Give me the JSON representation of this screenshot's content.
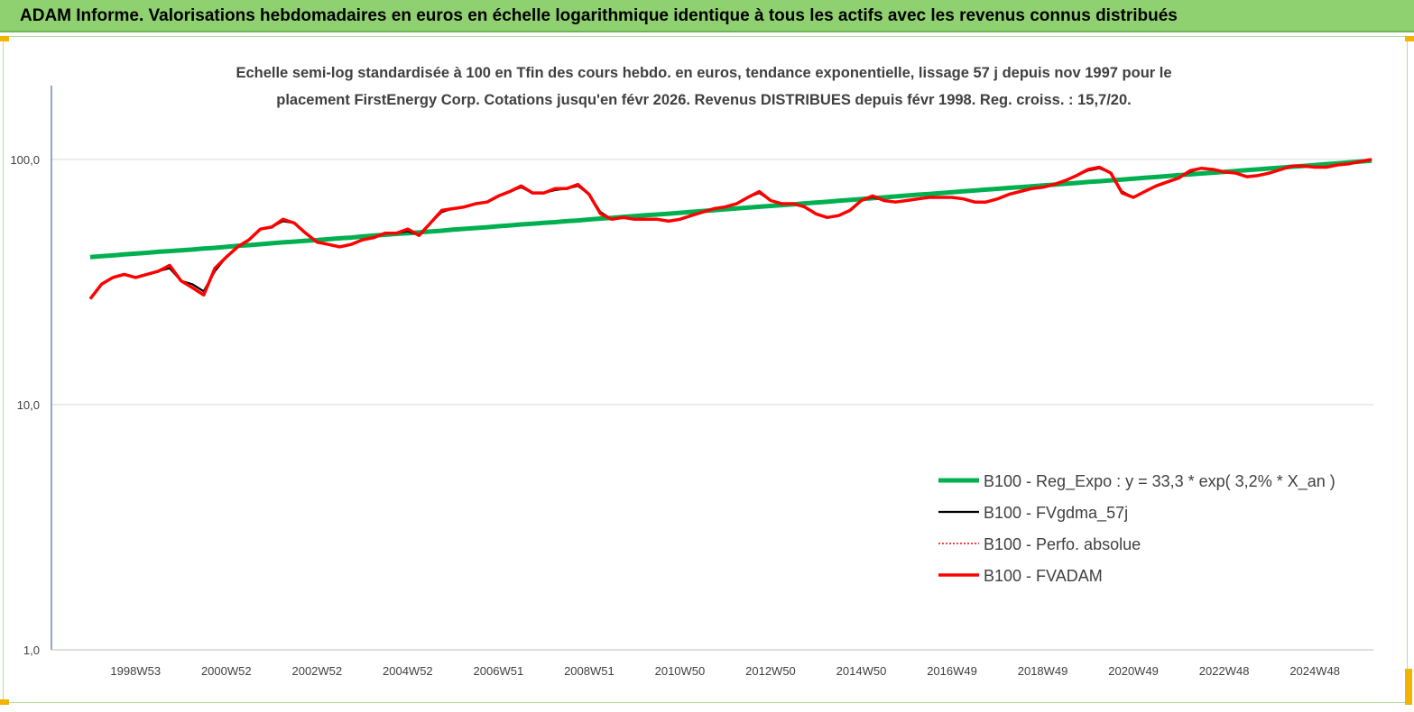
{
  "header": {
    "title": "ADAM Informe. Valorisations hebdomadaires en euros en échelle logarithmique identique à tous les actifs avec les revenus connus distribués"
  },
  "chart_data": {
    "type": "line",
    "title": "Echelle semi-log standardisée à 100 en Tfin des cours hebdo. en euros, tendance exponentielle, lissage 57 j depuis nov 1997 pour le placement FirstEnergy Corp. Cotations jusqu'en févr 2026. Revenus DISTRIBUES depuis févr 1998. Reg. croiss. : 15,7/20.",
    "log_scale": true,
    "grid": true,
    "legend": "lower right",
    "ylim": [
      1,
      200
    ],
    "yticks": [
      {
        "value": 1,
        "label": "1,0"
      },
      {
        "value": 10,
        "label": "10,0"
      },
      {
        "value": 100,
        "label": "100,0"
      }
    ],
    "categories": [
      null,
      null,
      null,
      null,
      "1998W53",
      null,
      null,
      null,
      null,
      null,
      null,
      null,
      "2000W52",
      null,
      null,
      null,
      null,
      null,
      null,
      null,
      "2002W52",
      null,
      null,
      null,
      null,
      null,
      null,
      null,
      "2004W52",
      null,
      null,
      null,
      null,
      null,
      null,
      null,
      "2006W51",
      null,
      null,
      null,
      null,
      null,
      null,
      null,
      "2008W51",
      null,
      null,
      null,
      null,
      null,
      null,
      null,
      "2010W50",
      null,
      null,
      null,
      null,
      null,
      null,
      null,
      "2012W50",
      null,
      null,
      null,
      null,
      null,
      null,
      null,
      "2014W50",
      null,
      null,
      null,
      null,
      null,
      null,
      null,
      "2016W49",
      null,
      null,
      null,
      null,
      null,
      null,
      null,
      "2018W49",
      null,
      null,
      null,
      null,
      null,
      null,
      null,
      "2020W49",
      null,
      null,
      null,
      null,
      null,
      null,
      null,
      "2022W48",
      null,
      null,
      null,
      null,
      null,
      null,
      null,
      "2024W48",
      null,
      null,
      null,
      null,
      null
    ],
    "series": [
      {
        "name": "B100 - Reg_Expo : y = 33,3 *  exp( 3,2% *  X_an )",
        "color": "#00b050",
        "linestyle": "solid",
        "values": [
          40.0,
          40.3,
          40.6,
          41.0,
          41.3,
          41.6,
          42.0,
          42.3,
          42.6,
          42.9,
          43.3,
          43.6,
          44.0,
          44.4,
          44.7,
          45.1,
          45.5,
          45.9,
          46.2,
          46.6,
          46.9,
          47.3,
          47.7,
          48.0,
          48.5,
          48.9,
          49.3,
          49.7,
          50.0,
          50.4,
          50.8,
          51.2,
          51.7,
          52.1,
          52.5,
          52.9,
          53.4,
          53.8,
          54.3,
          54.7,
          55.1,
          55.5,
          56.0,
          56.4,
          56.9,
          57.4,
          57.8,
          58.3,
          58.7,
          59.2,
          59.6,
          60.1,
          60.6,
          61.1,
          61.6,
          62.1,
          62.6,
          63.1,
          63.6,
          64.1,
          64.6,
          65.1,
          65.6,
          66.2,
          66.7,
          67.2,
          67.8,
          68.3,
          68.9,
          69.5,
          70.0,
          70.6,
          71.2,
          71.8,
          72.3,
          72.9,
          73.5,
          74.1,
          74.7,
          75.3,
          75.9,
          76.5,
          77.1,
          77.7,
          78.3,
          78.9,
          79.6,
          80.2,
          80.9,
          81.5,
          82.2,
          82.8,
          83.5,
          84.2,
          84.8,
          85.5,
          86.2,
          86.9,
          87.6,
          88.3,
          89.0,
          89.7,
          90.4,
          91.1,
          91.9,
          92.6,
          93.4,
          94.1,
          94.9,
          95.7,
          96.4,
          97.2,
          98.0,
          98.8
        ]
      },
      {
        "name": "B100 - FVgdma_57j",
        "color": "#000000",
        "linestyle": "solid",
        "values": [
          27,
          31,
          33,
          34,
          33,
          34,
          35,
          36,
          32,
          31,
          29,
          35,
          40,
          44,
          47,
          52,
          53,
          56,
          55,
          50,
          46,
          45,
          44,
          45,
          47,
          48,
          50,
          50,
          51,
          49,
          55,
          61,
          63,
          64,
          66,
          67,
          71,
          74,
          77,
          73,
          73,
          75,
          76,
          78,
          72,
          61,
          57,
          58,
          57,
          57,
          57,
          56,
          57,
          59,
          61,
          63,
          64,
          66,
          70,
          73,
          68,
          66,
          66,
          64,
          60,
          58,
          59,
          62,
          68,
          70,
          68,
          67,
          68,
          69,
          70,
          70,
          70,
          69,
          67,
          67,
          69,
          72,
          74,
          76,
          77,
          79,
          82,
          86,
          90,
          92,
          88,
          74,
          70,
          74,
          78,
          81,
          84,
          89,
          92,
          91,
          89,
          88,
          85,
          86,
          88,
          91,
          94,
          94,
          93,
          93,
          95,
          96,
          98,
          100
        ]
      },
      {
        "name": "B100 - Perfo. absolue",
        "color": "#ff0000",
        "linestyle": "dotted",
        "values": [
          27,
          31,
          33,
          34,
          33,
          34,
          35,
          37,
          32,
          30,
          28,
          36,
          40,
          44,
          47,
          52,
          53,
          57,
          55,
          50,
          46,
          45,
          44,
          45,
          47,
          48,
          50,
          50,
          52,
          49,
          55,
          62,
          63,
          64,
          66,
          67,
          71,
          74,
          78,
          73,
          73,
          76,
          76,
          79,
          72,
          60,
          57,
          58,
          57,
          57,
          57,
          56,
          57,
          59,
          61,
          63,
          64,
          66,
          70,
          74,
          68,
          66,
          66,
          64,
          60,
          58,
          59,
          62,
          68,
          71,
          68,
          67,
          68,
          69,
          70,
          70,
          70,
          69,
          67,
          67,
          69,
          72,
          74,
          76,
          77,
          79,
          82,
          86,
          91,
          93,
          88,
          73,
          70,
          74,
          78,
          81,
          84,
          90,
          92,
          91,
          89,
          88,
          85,
          86,
          88,
          91,
          94,
          94,
          93,
          93,
          95,
          96,
          98,
          100
        ]
      },
      {
        "name": "B100 - FVADAM",
        "color": "#ff0000",
        "linestyle": "solid",
        "values": [
          27,
          31,
          33,
          34,
          33,
          34,
          35,
          37,
          32,
          30,
          28,
          36,
          40,
          44,
          47,
          52,
          53,
          57,
          55,
          50,
          46,
          45,
          44,
          45,
          47,
          48,
          50,
          50,
          52,
          49,
          55,
          62,
          63,
          64,
          66,
          67,
          71,
          74,
          78,
          73,
          73,
          76,
          76,
          79,
          72,
          60,
          57,
          58,
          57,
          57,
          57,
          56,
          57,
          59,
          61,
          63,
          64,
          66,
          70,
          74,
          68,
          66,
          66,
          64,
          60,
          58,
          59,
          62,
          68,
          71,
          68,
          67,
          68,
          69,
          70,
          70,
          70,
          69,
          67,
          67,
          69,
          72,
          74,
          76,
          77,
          79,
          82,
          86,
          91,
          93,
          88,
          73,
          70,
          74,
          78,
          81,
          84,
          90,
          92,
          91,
          89,
          88,
          85,
          86,
          88,
          91,
          94,
          94,
          93,
          93,
          95,
          96,
          98,
          100
        ]
      }
    ]
  }
}
